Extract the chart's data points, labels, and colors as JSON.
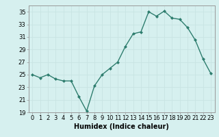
{
  "x": [
    0,
    1,
    2,
    3,
    4,
    5,
    6,
    7,
    8,
    9,
    10,
    11,
    12,
    13,
    14,
    15,
    16,
    17,
    18,
    19,
    20,
    21,
    22,
    23
  ],
  "y": [
    25.0,
    24.5,
    25.0,
    24.3,
    24.0,
    24.0,
    21.5,
    19.2,
    23.2,
    25.0,
    26.0,
    27.0,
    29.5,
    31.5,
    31.8,
    35.0,
    34.3,
    35.1,
    34.0,
    33.8,
    32.5,
    30.5,
    27.5,
    25.2
  ],
  "line_color": "#2e7d6e",
  "marker": "D",
  "marker_size": 2.0,
  "bg_color": "#d6f0ef",
  "grid_color": "#c8e4e2",
  "xlabel": "Humidex (Indice chaleur)",
  "ylim": [
    19,
    36
  ],
  "xlim": [
    -0.5,
    23.5
  ],
  "yticks": [
    19,
    21,
    23,
    25,
    27,
    29,
    31,
    33,
    35
  ],
  "xticks": [
    0,
    1,
    2,
    3,
    4,
    5,
    6,
    7,
    8,
    9,
    10,
    11,
    12,
    13,
    14,
    15,
    16,
    17,
    18,
    19,
    20,
    21,
    22,
    23
  ],
  "xtick_labels": [
    "0",
    "1",
    "2",
    "3",
    "4",
    "5",
    "6",
    "7",
    "8",
    "9",
    "10",
    "11",
    "12",
    "13",
    "14",
    "15",
    "16",
    "17",
    "18",
    "19",
    "20",
    "21",
    "22",
    "23"
  ],
  "xlabel_fontsize": 7.0,
  "tick_fontsize": 6.0,
  "line_width": 1.0
}
